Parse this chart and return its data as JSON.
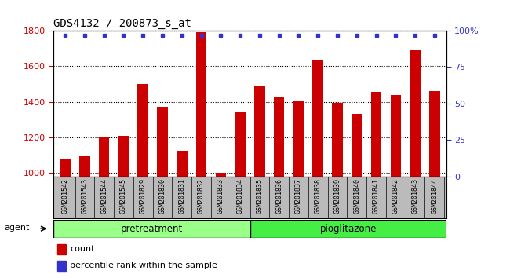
{
  "title": "GDS4132 / 200873_s_at",
  "samples": [
    "GSM201542",
    "GSM201543",
    "GSM201544",
    "GSM201545",
    "GSM201829",
    "GSM201830",
    "GSM201831",
    "GSM201832",
    "GSM201833",
    "GSM201834",
    "GSM201835",
    "GSM201836",
    "GSM201837",
    "GSM201838",
    "GSM201839",
    "GSM201840",
    "GSM201841",
    "GSM201842",
    "GSM201843",
    "GSM201844"
  ],
  "counts": [
    1075,
    1095,
    1200,
    1210,
    1500,
    1370,
    1125,
    1790,
    1002,
    1345,
    1490,
    1425,
    1405,
    1630,
    1395,
    1330,
    1455,
    1440,
    1690,
    1460
  ],
  "percentile_ranks": [
    100,
    100,
    100,
    100,
    100,
    100,
    100,
    100,
    100,
    100,
    100,
    100,
    100,
    100,
    100,
    100,
    100,
    100,
    100,
    100
  ],
  "bar_color": "#cc0000",
  "percentile_color": "#3333cc",
  "ylim_left": [
    980,
    1800
  ],
  "ylim_right": [
    0,
    100
  ],
  "yticks_left": [
    1000,
    1200,
    1400,
    1600,
    1800
  ],
  "yticks_right": [
    0,
    25,
    50,
    75,
    100
  ],
  "ytick_labels_right": [
    "0",
    "25",
    "50",
    "75",
    "100%"
  ],
  "pretreatment_count": 10,
  "pioglitazone_count": 10,
  "pretreatment_color": "#99ff88",
  "pioglitazone_color": "#44ee44",
  "xtick_bg_color": "#bbbbbb",
  "plot_bg": "#ffffff",
  "title_fontsize": 10,
  "tick_fontsize": 8,
  "bar_width": 0.55
}
